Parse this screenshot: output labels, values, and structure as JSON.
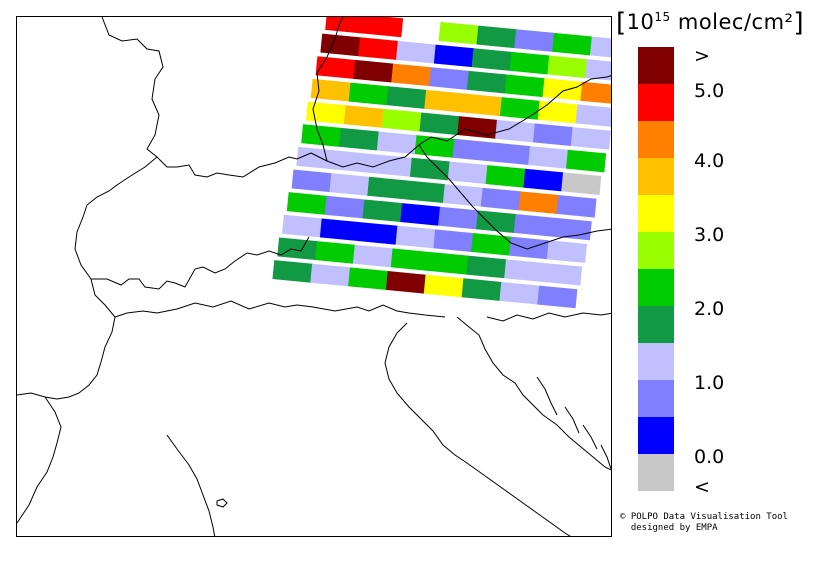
{
  "legend": {
    "title_prefix": "10",
    "title_exp": "15",
    "title_unit": "molec/cm²",
    "labels": [
      ">",
      "5.0",
      "4.0",
      "3.0",
      "2.0",
      "1.0",
      "0.0",
      "<"
    ],
    "colors": [
      "#800000",
      "#ff0000",
      "#ff8000",
      "#ffc000",
      "#ffff00",
      "#99ff00",
      "#00cc00",
      "#119944",
      "#c0c0ff",
      "#8080ff",
      "#0000ff",
      "#c8c8c8"
    ]
  },
  "credit": {
    "line1": "© POLPO Data Visualisation Tool",
    "line2": "  designed by EMPA"
  },
  "map": {
    "swath_grid_color_index": [
      [
        1,
        1,
        -1,
        5,
        7,
        9,
        6,
        8
      ],
      [
        0,
        1,
        8,
        10,
        7,
        6,
        5,
        8
      ],
      [
        1,
        0,
        2,
        9,
        7,
        6,
        4,
        2
      ],
      [
        3,
        6,
        7,
        3,
        3,
        6,
        4,
        8
      ],
      [
        4,
        3,
        5,
        7,
        0,
        8,
        9,
        8
      ],
      [
        6,
        7,
        8,
        6,
        9,
        9,
        8,
        6
      ],
      [
        8,
        8,
        8,
        7,
        8,
        6,
        10,
        11
      ],
      [
        9,
        8,
        7,
        7,
        8,
        9,
        2,
        9
      ],
      [
        6,
        9,
        7,
        10,
        9,
        7,
        9,
        9
      ],
      [
        8,
        10,
        10,
        8,
        9,
        6,
        9,
        8
      ],
      [
        7,
        6,
        8,
        6,
        6,
        7,
        8,
        8
      ],
      [
        7,
        8,
        6,
        0,
        4,
        7,
        8,
        9
      ]
    ]
  }
}
